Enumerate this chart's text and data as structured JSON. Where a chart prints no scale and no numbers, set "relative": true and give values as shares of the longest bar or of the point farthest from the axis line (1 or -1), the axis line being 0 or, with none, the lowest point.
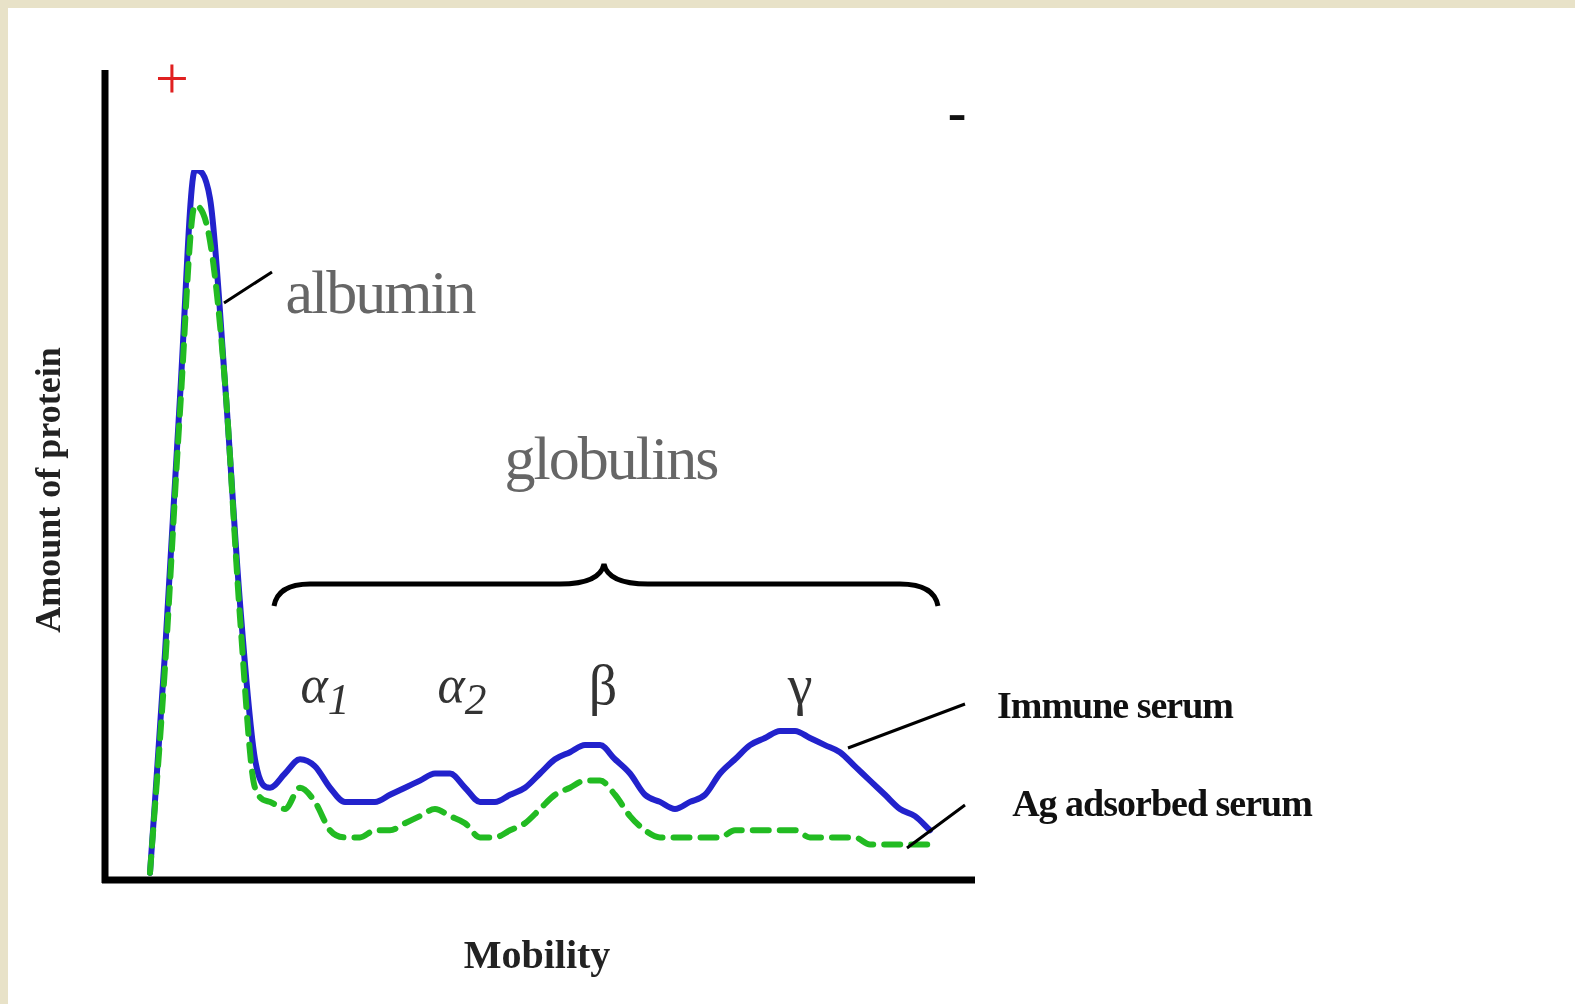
{
  "chart_data": {
    "type": "line",
    "relative": true,
    "xlabel": "Mobility",
    "ylabel": "Amount of protein",
    "legend": false,
    "categories": [
      null,
      null,
      null,
      null,
      null,
      null,
      null,
      null,
      null,
      null,
      null,
      null,
      null,
      null,
      null,
      null,
      null,
      null,
      null,
      null,
      null,
      null,
      null,
      null,
      null,
      null,
      null,
      null,
      null,
      null,
      null,
      null,
      null,
      null,
      null,
      null,
      null,
      null,
      null,
      null,
      null,
      null,
      null,
      null,
      null,
      null,
      null,
      null,
      null,
      null,
      null,
      null,
      null,
      null,
      null,
      null,
      null,
      null
    ],
    "series": [
      {
        "name": "Immune serum",
        "color": "#2222cc",
        "line_style": "solid",
        "values": [
          null,
          null,
          null,
          0.01,
          0.32,
          0.68,
          1,
          0.96,
          0.7,
          0.39,
          0.17,
          0.13,
          0.15,
          0.17,
          0.16,
          0.13,
          0.11,
          0.11,
          0.11,
          0.12,
          0.13,
          0.14,
          0.15,
          0.15,
          0.13,
          0.11,
          0.11,
          0.12,
          0.13,
          0.15,
          0.17,
          0.18,
          0.19,
          0.19,
          0.17,
          0.15,
          0.12,
          0.11,
          0.1,
          0.11,
          0.12,
          0.15,
          0.17,
          0.19,
          0.2,
          0.21,
          0.21,
          0.2,
          0.19,
          0.18,
          0.16,
          0.14,
          0.12,
          0.1,
          0.09,
          0.07,
          null,
          null
        ]
      },
      {
        "name": "Ag adsorbed serum",
        "color": "#22bb22",
        "line_style": "dashed",
        "values": [
          null,
          null,
          null,
          0.01,
          0.3,
          0.66,
          0.95,
          0.9,
          0.7,
          0.37,
          0.13,
          0.11,
          0.1,
          0.13,
          0.11,
          0.07,
          0.06,
          0.06,
          0.07,
          0.07,
          0.08,
          0.09,
          0.1,
          0.09,
          0.08,
          0.06,
          0.06,
          0.07,
          0.08,
          0.1,
          0.12,
          0.13,
          0.14,
          0.14,
          0.12,
          0.09,
          0.07,
          0.06,
          0.06,
          0.06,
          0.06,
          0.06,
          0.07,
          0.07,
          0.07,
          0.07,
          0.07,
          0.06,
          0.06,
          0.06,
          0.06,
          0.05,
          0.05,
          0.05,
          0.05,
          0.05,
          null,
          null
        ]
      }
    ],
    "annotations": [
      "+",
      "-",
      "albumin",
      "globulins",
      "α$_{1}$",
      "α$_{2}$",
      "β",
      "γ"
    ]
  }
}
